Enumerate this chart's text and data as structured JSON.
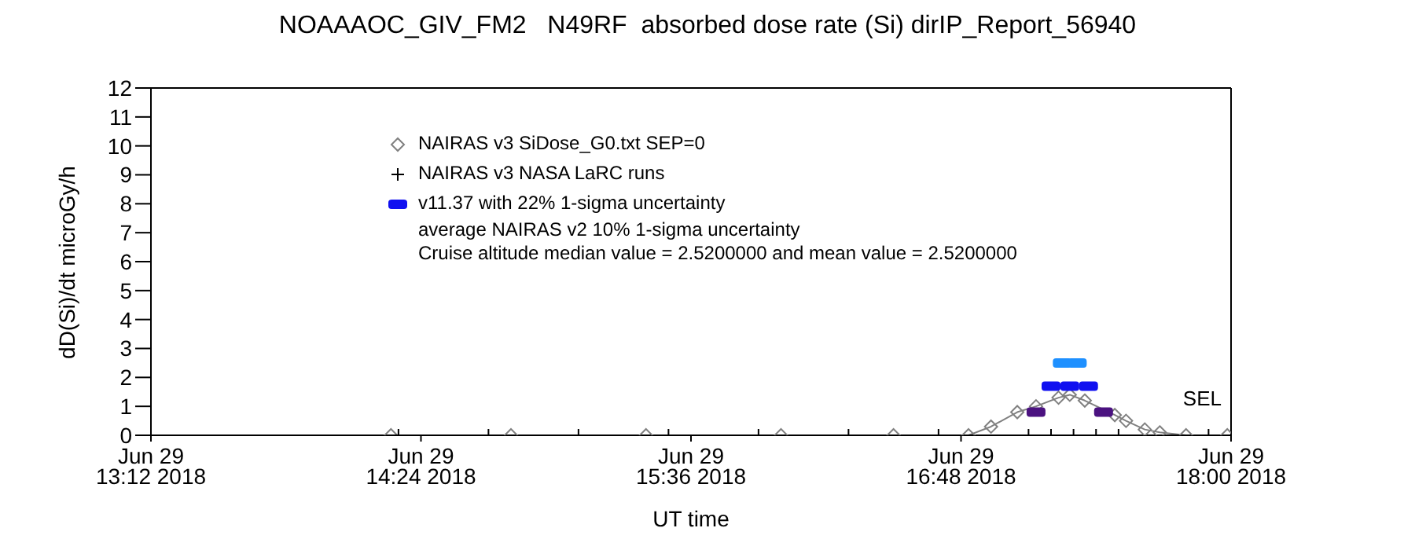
{
  "chart_data": {
    "type": "line",
    "title": "NOAAAOC_GIV_FM2   N49RF  absorbed dose rate (Si) dirIP_Report_56940",
    "xlabel": "UT time",
    "ylabel": "dD(Si)/dt microGy/h",
    "xlim": [
      "2018-06-29T13:12",
      "2018-06-29T18:00"
    ],
    "xticks": [
      {
        "value": "2018-06-29T13:12",
        "label": "Jun 29\n13:12 2018"
      },
      {
        "value": "2018-06-29T14:24",
        "label": "Jun 29\n14:24 2018"
      },
      {
        "value": "2018-06-29T15:36",
        "label": "Jun 29\n15:36 2018"
      },
      {
        "value": "2018-06-29T16:48",
        "label": "Jun 29\n16:48 2018"
      },
      {
        "value": "2018-06-29T18:00",
        "label": "Jun 29\n18:00 2018"
      }
    ],
    "ylim": [
      0,
      12
    ],
    "yticks": [
      0,
      1,
      2,
      3,
      4,
      5,
      6,
      7,
      8,
      9,
      10,
      11,
      12
    ],
    "legend": "top",
    "series": [
      {
        "name": "NAIRAS v3 SiDose_G0.txt SEP=0",
        "marker": "diamond",
        "color": "#808080",
        "x": [
          "2018-06-29T14:16",
          "2018-06-29T14:48",
          "2018-06-29T15:24",
          "2018-06-29T16:00",
          "2018-06-29T16:30",
          "2018-06-29T16:50",
          "2018-06-29T16:56",
          "2018-06-29T17:03",
          "2018-06-29T17:08",
          "2018-06-29T17:14",
          "2018-06-29T17:17",
          "2018-06-29T17:21",
          "2018-06-29T17:29",
          "2018-06-29T17:32",
          "2018-06-29T17:37",
          "2018-06-29T17:41",
          "2018-06-29T17:48",
          "2018-06-29T17:59"
        ],
        "values": [
          0,
          0,
          0,
          0,
          0,
          0,
          0.3,
          0.8,
          1.0,
          1.3,
          1.4,
          1.2,
          0.7,
          0.5,
          0.2,
          0.1,
          0,
          0
        ]
      },
      {
        "name": "NAIRAS v3 NASA LaRC runs",
        "type": "scatter",
        "marker": "cross",
        "color": "#000000",
        "x": [
          "2018-06-29T14:18",
          "2018-06-29T14:42",
          "2018-06-29T15:06",
          "2018-06-29T15:30",
          "2018-06-29T15:54",
          "2018-06-29T16:18",
          "2018-06-29T16:42",
          "2018-06-29T17:06",
          "2018-06-29T17:12",
          "2018-06-29T17:18",
          "2018-06-29T17:24",
          "2018-06-29T17:30",
          "2018-06-29T17:54"
        ],
        "values": [
          0,
          0,
          0,
          0,
          0,
          0,
          0,
          0,
          0,
          0,
          0,
          0,
          0
        ]
      },
      {
        "name": "v11.37 with 22% 1-sigma uncertainty",
        "type": "scatter",
        "marker": "square",
        "color": "#1010f0",
        "colors": [
          "#4b1280",
          "#1010f0",
          "#1e90ff",
          "#1010f0",
          "#1e90ff",
          "#1010f0",
          "#4b1280"
        ],
        "x": [
          "2018-06-29T17:08",
          "2018-06-29T17:12",
          "2018-06-29T17:15",
          "2018-06-29T17:17",
          "2018-06-29T17:19",
          "2018-06-29T17:22",
          "2018-06-29T17:26"
        ],
        "values": [
          0.8,
          1.7,
          2.5,
          1.7,
          2.5,
          1.7,
          0.8
        ]
      }
    ],
    "annotations": [
      "average NAIRAS v2 10% 1-sigma uncertainty",
      "Cruise altitude median value = 2.5200000 and mean value = 2.5200000",
      "SEL"
    ]
  }
}
